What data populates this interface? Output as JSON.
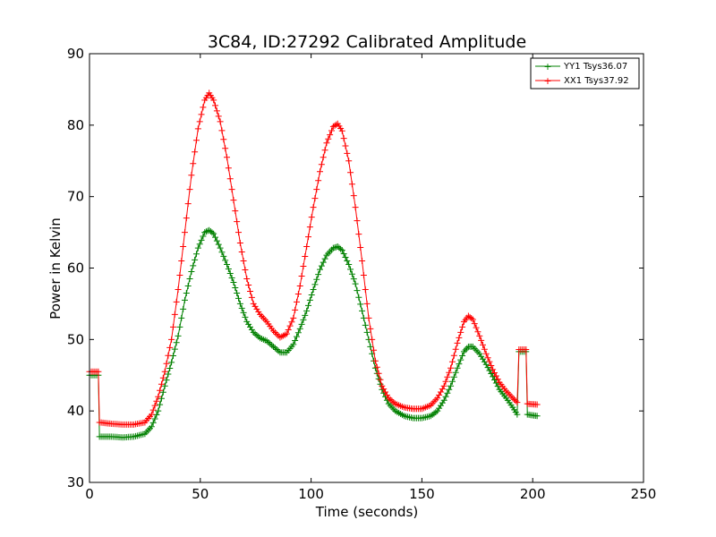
{
  "chart_data": {
    "type": "line",
    "title": "3C84, ID:27292 Calibrated Amplitude",
    "xlabel": "Time (seconds)",
    "ylabel": "Power in Kelvin",
    "xlim": [
      0,
      250
    ],
    "ylim": [
      30,
      90
    ],
    "xticks": [
      0,
      50,
      100,
      150,
      200,
      250
    ],
    "yticks": [
      30,
      40,
      50,
      60,
      70,
      80,
      90
    ],
    "grid": false,
    "legend_position": "top-right",
    "marker": "+",
    "series": [
      {
        "name": "YY1 Tsys36.07",
        "color": "#008000",
        "points": [
          [
            0,
            45.0
          ],
          [
            4,
            45.0
          ],
          [
            4.5,
            36.4
          ],
          [
            10,
            36.4
          ],
          [
            15,
            36.3
          ],
          [
            20,
            36.4
          ],
          [
            25,
            36.8
          ],
          [
            28,
            37.8
          ],
          [
            31,
            40.0
          ],
          [
            34,
            43.5
          ],
          [
            37,
            46.8
          ],
          [
            40,
            50.5
          ],
          [
            43,
            55.5
          ],
          [
            46,
            59.5
          ],
          [
            49,
            62.8
          ],
          [
            52,
            65.0
          ],
          [
            54,
            65.3
          ],
          [
            56,
            64.8
          ],
          [
            59,
            62.8
          ],
          [
            62,
            60.5
          ],
          [
            65,
            58.0
          ],
          [
            68,
            55.0
          ],
          [
            71,
            52.5
          ],
          [
            74,
            51.0
          ],
          [
            77,
            50.2
          ],
          [
            80,
            49.8
          ],
          [
            83,
            49.0
          ],
          [
            86,
            48.2
          ],
          [
            89,
            48.2
          ],
          [
            92,
            49.3
          ],
          [
            95,
            51.5
          ],
          [
            98,
            54.0
          ],
          [
            101,
            57.0
          ],
          [
            104,
            59.8
          ],
          [
            107,
            61.8
          ],
          [
            110,
            62.8
          ],
          [
            112,
            63.0
          ],
          [
            114,
            62.5
          ],
          [
            117,
            60.5
          ],
          [
            120,
            57.8
          ],
          [
            123,
            54.0
          ],
          [
            126,
            50.0
          ],
          [
            129,
            46.0
          ],
          [
            132,
            43.0
          ],
          [
            135,
            41.0
          ],
          [
            138,
            40.0
          ],
          [
            142,
            39.3
          ],
          [
            146,
            39.0
          ],
          [
            150,
            39.0
          ],
          [
            154,
            39.3
          ],
          [
            157,
            40.0
          ],
          [
            160,
            41.5
          ],
          [
            163,
            43.5
          ],
          [
            166,
            46.0
          ],
          [
            169,
            48.3
          ],
          [
            171,
            49.0
          ],
          [
            173,
            49.0
          ],
          [
            176,
            48.0
          ],
          [
            179,
            46.5
          ],
          [
            182,
            44.8
          ],
          [
            185,
            43.0
          ],
          [
            188,
            41.8
          ],
          [
            191,
            40.5
          ],
          [
            193,
            39.5
          ],
          [
            193.8,
            48.3
          ],
          [
            197,
            48.3
          ],
          [
            197.6,
            39.5
          ],
          [
            202,
            39.3
          ]
        ]
      },
      {
        "name": "XX1 Tsys37.92",
        "color": "#ff0000",
        "points": [
          [
            0,
            45.5
          ],
          [
            4,
            45.5
          ],
          [
            4.5,
            38.4
          ],
          [
            10,
            38.2
          ],
          [
            15,
            38.1
          ],
          [
            20,
            38.1
          ],
          [
            25,
            38.4
          ],
          [
            28,
            39.5
          ],
          [
            31,
            42.0
          ],
          [
            34,
            45.5
          ],
          [
            37,
            50.0
          ],
          [
            40,
            57.0
          ],
          [
            43,
            65.0
          ],
          [
            46,
            73.0
          ],
          [
            49,
            79.5
          ],
          [
            52,
            83.5
          ],
          [
            54,
            84.5
          ],
          [
            56,
            83.5
          ],
          [
            59,
            80.5
          ],
          [
            62,
            75.5
          ],
          [
            65,
            69.5
          ],
          [
            68,
            63.5
          ],
          [
            71,
            58.5
          ],
          [
            74,
            55.0
          ],
          [
            77,
            53.5
          ],
          [
            80,
            52.5
          ],
          [
            83,
            51.2
          ],
          [
            86,
            50.3
          ],
          [
            89,
            50.8
          ],
          [
            92,
            53.0
          ],
          [
            95,
            57.5
          ],
          [
            98,
            63.0
          ],
          [
            101,
            68.5
          ],
          [
            104,
            73.5
          ],
          [
            107,
            77.5
          ],
          [
            110,
            79.8
          ],
          [
            112,
            80.2
          ],
          [
            114,
            79.2
          ],
          [
            117,
            75.0
          ],
          [
            120,
            68.5
          ],
          [
            123,
            61.0
          ],
          [
            126,
            53.0
          ],
          [
            129,
            47.0
          ],
          [
            132,
            43.5
          ],
          [
            135,
            41.8
          ],
          [
            138,
            41.0
          ],
          [
            142,
            40.5
          ],
          [
            146,
            40.3
          ],
          [
            150,
            40.3
          ],
          [
            154,
            40.8
          ],
          [
            157,
            41.8
          ],
          [
            160,
            43.5
          ],
          [
            163,
            46.0
          ],
          [
            166,
            49.5
          ],
          [
            169,
            52.5
          ],
          [
            171,
            53.3
          ],
          [
            173,
            52.8
          ],
          [
            176,
            50.5
          ],
          [
            179,
            48.0
          ],
          [
            182,
            45.8
          ],
          [
            185,
            44.0
          ],
          [
            188,
            42.8
          ],
          [
            191,
            41.8
          ],
          [
            193,
            41.2
          ],
          [
            193.8,
            48.6
          ],
          [
            197,
            48.6
          ],
          [
            197.6,
            41.0
          ],
          [
            202,
            40.9
          ]
        ]
      }
    ]
  }
}
